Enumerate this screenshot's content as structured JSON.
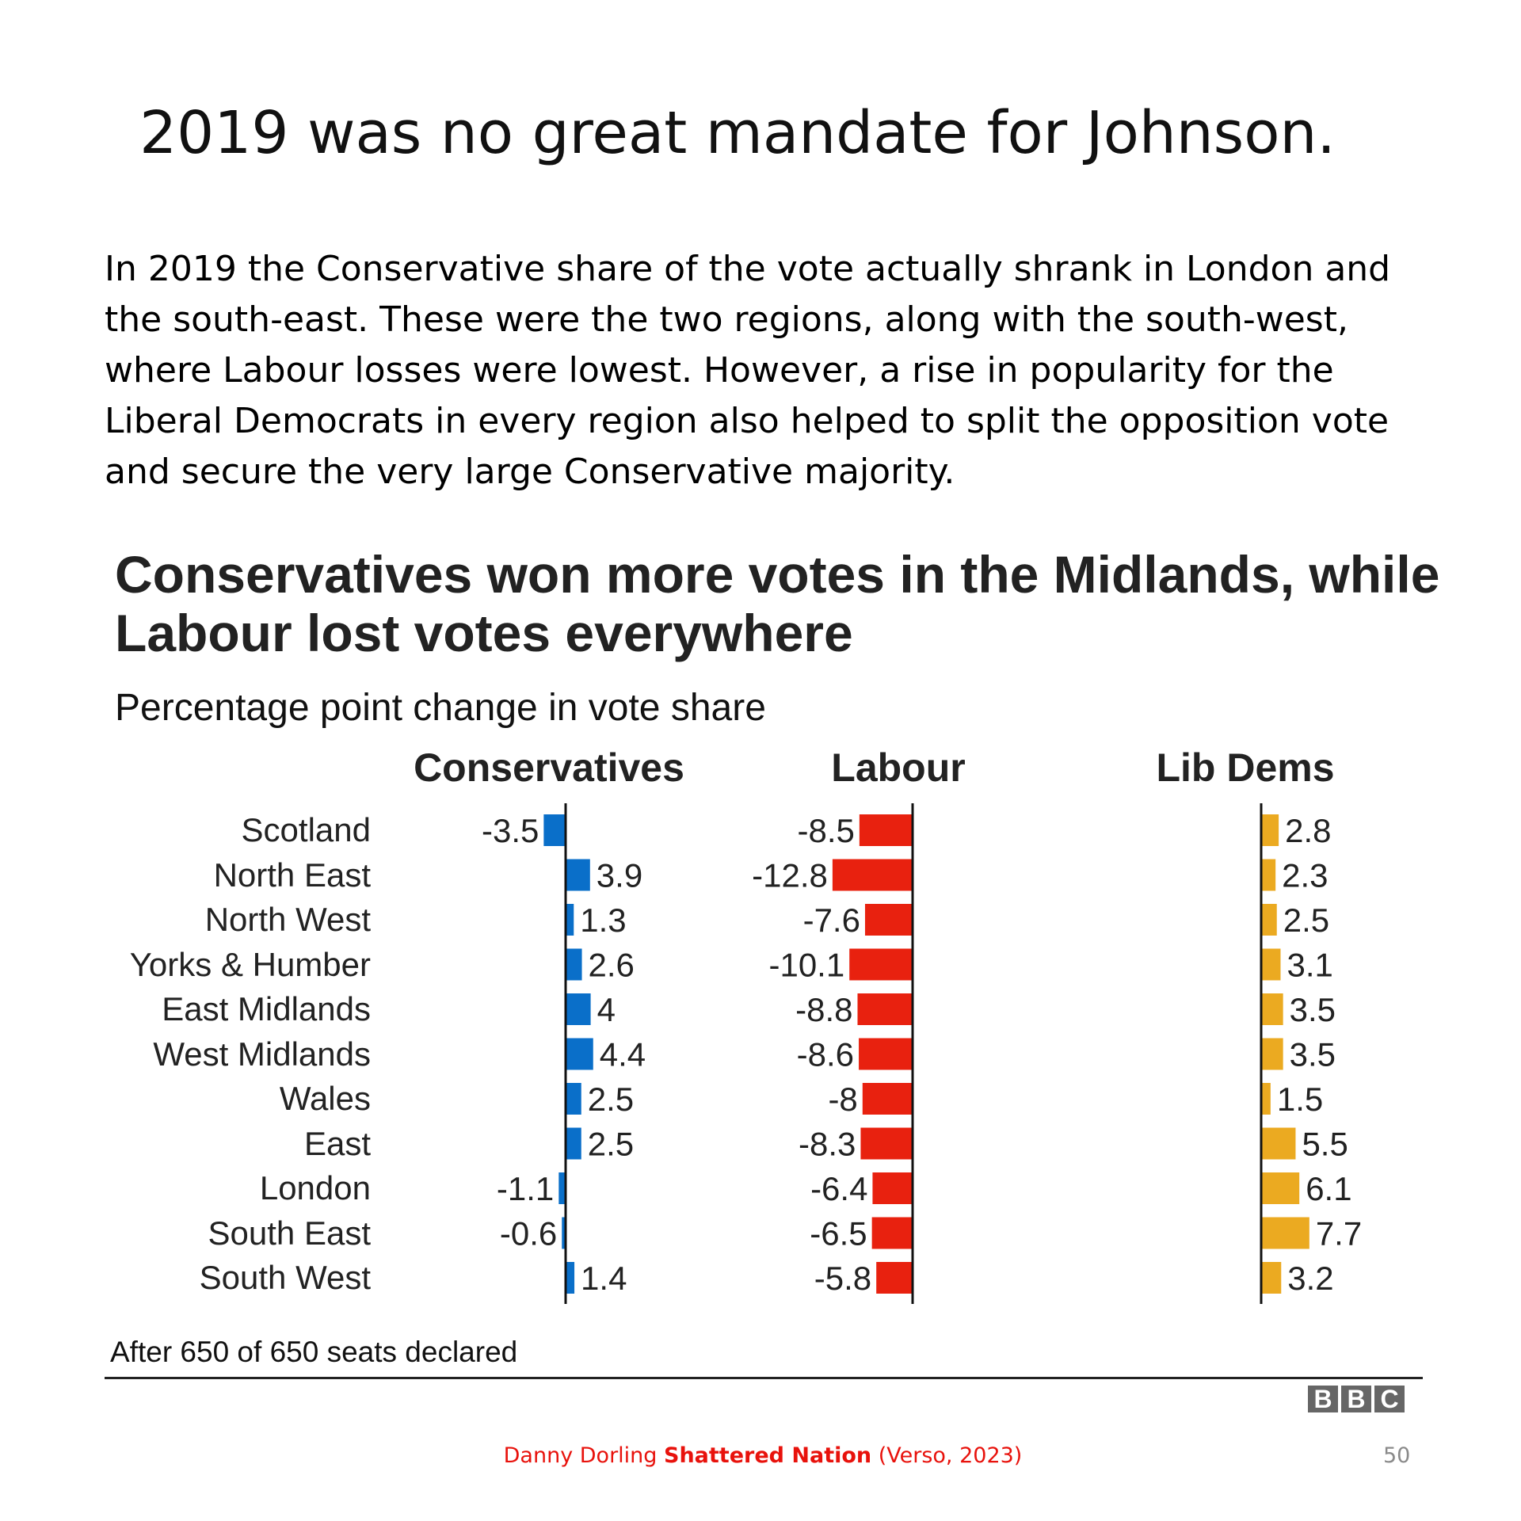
{
  "slide": {
    "title": "2019 was no great mandate for Johnson.",
    "paragraph": "In 2019 the Conservative share of the vote actually shrank in London and the south-east. These were the two regions, along with the south-west, where Labour losses were lowest. However, a rise in popularity for the Liberal Democrats in every region also helped to split the opposition vote and secure the very large Conservative majority.",
    "citation_author": "Danny Dorling ",
    "citation_title": "Shattered Nation",
    "citation_rest": " (Verso, 2023)",
    "page_number": "50"
  },
  "logo": {
    "letters": [
      "B",
      "B",
      "C"
    ]
  },
  "chart_data": {
    "type": "bar",
    "orientation": "horizontal",
    "title": "Conservatives won more votes in the Midlands, while Labour lost votes everywhere",
    "subtitle": "Percentage point change in vote share",
    "footnote": "After 650 of 650 seats declared",
    "categories": [
      "Scotland",
      "North East",
      "North West",
      "Yorks & Humber",
      "East Midlands",
      "West Midlands",
      "Wales",
      "East",
      "London",
      "South East",
      "South West"
    ],
    "series": [
      {
        "name": "Conservatives",
        "color": "#0a6fc9",
        "values": [
          -3.5,
          3.9,
          1.3,
          2.6,
          4,
          4.4,
          2.5,
          2.5,
          -1.1,
          -0.6,
          1.4
        ]
      },
      {
        "name": "Labour",
        "color": "#e8210f",
        "values": [
          -8.5,
          -12.8,
          -7.6,
          -10.1,
          -8.8,
          -8.6,
          -8,
          -8.3,
          -6.4,
          -6.5,
          -5.8
        ]
      },
      {
        "name": "Lib Dems",
        "color": "#ebaa21",
        "values": [
          2.8,
          2.3,
          2.5,
          3.1,
          3.5,
          3.5,
          1.5,
          5.5,
          6.1,
          7.7,
          3.2
        ]
      }
    ],
    "grid": false,
    "data_labels": true
  }
}
